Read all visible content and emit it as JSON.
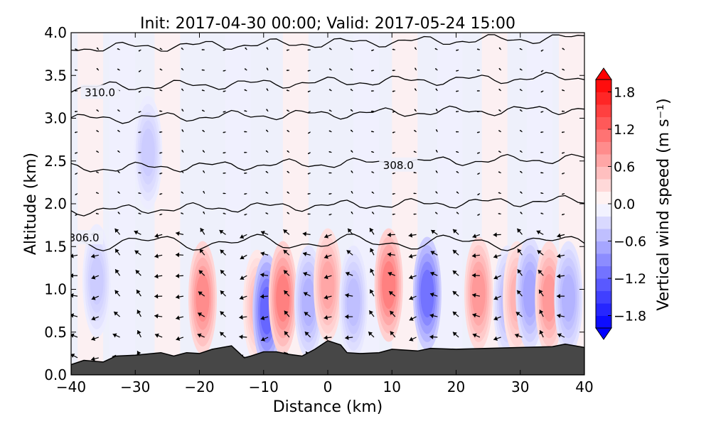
{
  "chart_data": {
    "type": "contour",
    "title": "Init: 2017-04-30 00:00; Valid: 2017-05-24 15:00",
    "xlabel": "Distance (km)",
    "ylabel": "Altitude (km)",
    "xlim": [
      -40,
      40
    ],
    "ylim": [
      0.0,
      4.0
    ],
    "x_ticks": [
      "−40",
      "−30",
      "−20",
      "−10",
      "0",
      "10",
      "20",
      "30",
      "40"
    ],
    "x_tick_values": [
      -40,
      -30,
      -20,
      -10,
      0,
      10,
      20,
      30,
      40
    ],
    "y_ticks": [
      "0.0",
      "0.5",
      "1.0",
      "1.5",
      "2.0",
      "2.5",
      "3.0",
      "3.5",
      "4.0"
    ],
    "y_tick_values": [
      0.0,
      0.5,
      1.0,
      1.5,
      2.0,
      2.5,
      3.0,
      3.5,
      4.0
    ],
    "colorbar": {
      "label": "Vertical wind speed (m s⁻¹)",
      "range": [
        -2.0,
        2.0
      ],
      "extend": "both",
      "cmap": "bwr",
      "tick_labels": [
        "1.8",
        "1.2",
        "0.6",
        "0.0",
        "−0.6",
        "−1.2",
        "−1.8"
      ],
      "tick_values": [
        1.8,
        1.2,
        0.6,
        0.0,
        -0.6,
        -1.2,
        -1.8
      ]
    },
    "contour_labels": [
      {
        "text": "310.0",
        "x": -35.5,
        "y": 3.3
      },
      {
        "text": "308.0",
        "x": 11,
        "y": 2.45
      },
      {
        "text": "306.0",
        "x": -38,
        "y": 1.6
      }
    ],
    "isentropes": [
      {
        "points": [
          [
            -40,
            0.0
          ],
          [
            0,
            0.0
          ]
        ]
      }
    ],
    "terrain": [
      [
        -40,
        0.12
      ],
      [
        -38,
        0.17
      ],
      [
        -35,
        0.15
      ],
      [
        -33,
        0.22
      ],
      [
        -30,
        0.23
      ],
      [
        -26,
        0.26
      ],
      [
        -24,
        0.22
      ],
      [
        -22,
        0.26
      ],
      [
        -20,
        0.25
      ],
      [
        -18,
        0.3
      ],
      [
        -15,
        0.34
      ],
      [
        -13,
        0.2
      ],
      [
        -12,
        0.22
      ],
      [
        -10,
        0.27
      ],
      [
        -8,
        0.27
      ],
      [
        -6,
        0.24
      ],
      [
        -4,
        0.22
      ],
      [
        -2,
        0.3
      ],
      [
        0,
        0.4
      ],
      [
        2,
        0.35
      ],
      [
        3,
        0.26
      ],
      [
        5,
        0.25
      ],
      [
        8,
        0.26
      ],
      [
        10,
        0.3
      ],
      [
        14,
        0.28
      ],
      [
        16,
        0.31
      ],
      [
        20,
        0.3
      ],
      [
        25,
        0.31
      ],
      [
        30,
        0.32
      ],
      [
        35,
        0.33
      ],
      [
        37,
        0.36
      ],
      [
        40,
        0.32
      ]
    ],
    "w_cells": [
      {
        "x": -19.5,
        "y": 0.9,
        "w": 0.9
      },
      {
        "x": -11,
        "y": 0.8,
        "w": 0.5
      },
      {
        "x": -9.5,
        "y": 0.75,
        "w": -1.2
      },
      {
        "x": -7,
        "y": 0.9,
        "w": 1.0
      },
      {
        "x": -3,
        "y": 0.85,
        "w": -0.6
      },
      {
        "x": 0,
        "y": 1.05,
        "w": 0.7
      },
      {
        "x": 4,
        "y": 0.85,
        "w": -0.5
      },
      {
        "x": 9.5,
        "y": 1.05,
        "w": 1.0
      },
      {
        "x": 15.5,
        "y": 0.95,
        "w": -1.1
      },
      {
        "x": 23.5,
        "y": 0.95,
        "w": 0.8
      },
      {
        "x": 28,
        "y": 0.85,
        "w": -0.5
      },
      {
        "x": 29.5,
        "y": 0.9,
        "w": 0.6
      },
      {
        "x": 31.5,
        "y": 0.95,
        "w": -0.7
      },
      {
        "x": 34.5,
        "y": 0.9,
        "w": 0.8
      },
      {
        "x": 37.5,
        "y": 0.9,
        "w": -0.6
      },
      {
        "x": -28,
        "y": 2.6,
        "w": -0.4
      },
      {
        "x": -36,
        "y": 1.1,
        "w": -0.4
      }
    ]
  }
}
